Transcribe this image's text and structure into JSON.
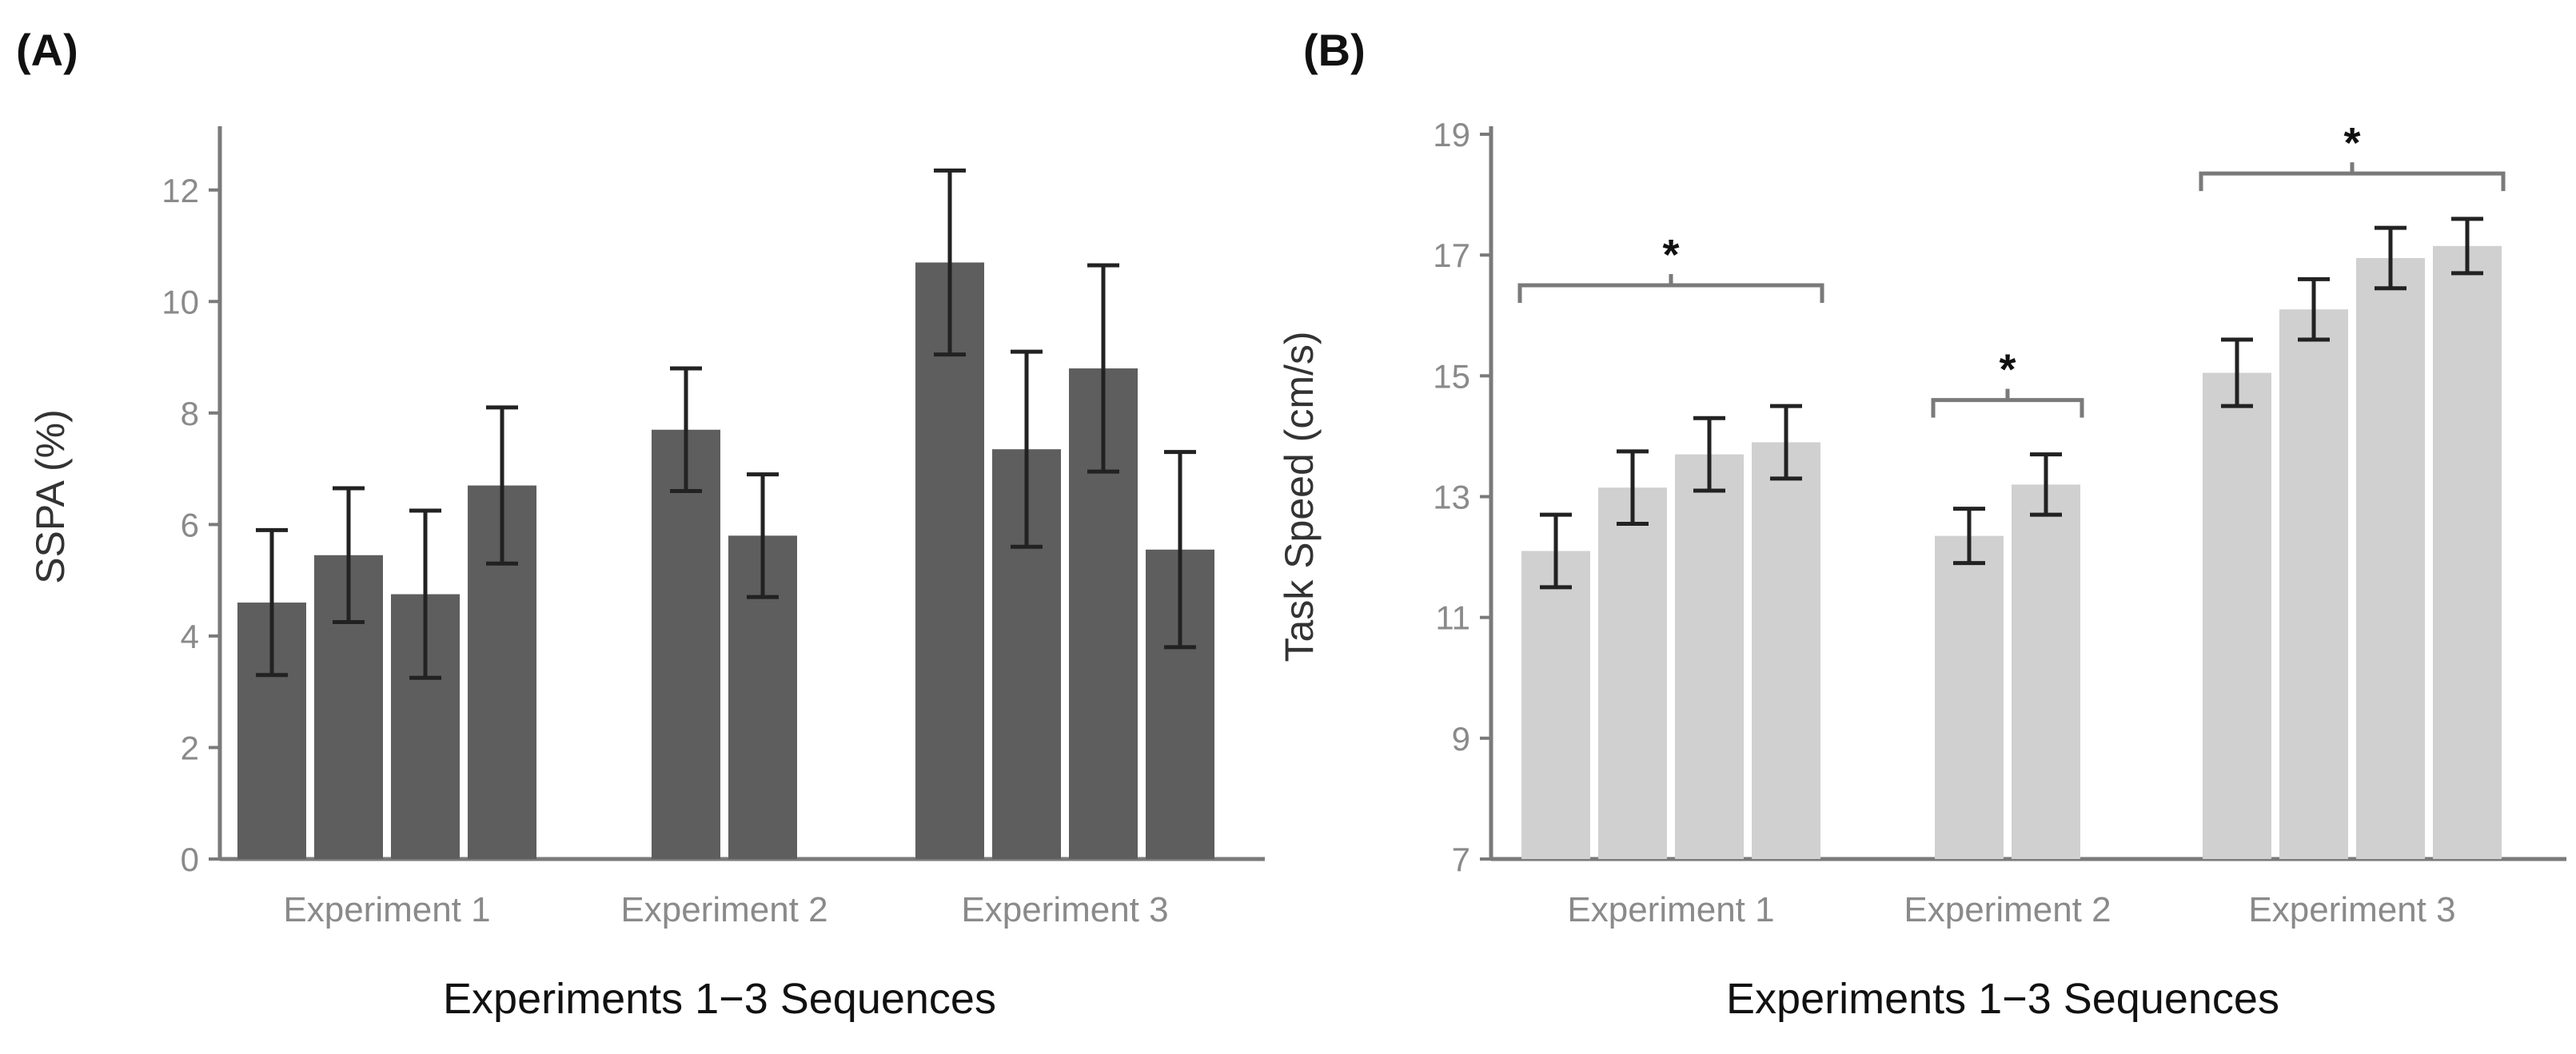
{
  "panels": [
    {
      "label": "(A)"
    },
    {
      "label": "(B)"
    }
  ],
  "colors": {
    "bar_a": "#5e5e5e",
    "bar_b": "#d0d0d0",
    "axis": "#7a7a7a",
    "tick_text": "#8a8a8a",
    "label_text": "#333333",
    "error_bar": "#222222",
    "bracket": "#7a7a7a"
  },
  "chart_data": [
    {
      "type": "bar",
      "panel": "(A)",
      "title": "",
      "xlabel": "Experiments 1−3 Sequences",
      "ylabel": "SSPA (%)",
      "ylim": [
        0,
        13
      ],
      "yticks": [
        0,
        2,
        4,
        6,
        8,
        10,
        12
      ],
      "grid": false,
      "groups": [
        {
          "name": "Experiment 1",
          "values": [
            4.6,
            5.45,
            4.75,
            6.7
          ],
          "errors": [
            1.3,
            1.2,
            1.5,
            1.4
          ]
        },
        {
          "name": "Experiment 2",
          "values": [
            7.7,
            5.8
          ],
          "errors": [
            1.1,
            1.1
          ]
        },
        {
          "name": "Experiment 3",
          "values": [
            10.7,
            7.35,
            8.8,
            5.55
          ],
          "errors": [
            1.65,
            1.75,
            1.85,
            1.75
          ]
        }
      ],
      "significance": []
    },
    {
      "type": "bar",
      "panel": "(B)",
      "title": "",
      "xlabel": "Experiments 1−3 Sequences",
      "ylabel": "Task Speed (cm/s)",
      "ylim": [
        7,
        19
      ],
      "yticks": [
        7,
        9,
        11,
        13,
        15,
        17,
        19
      ],
      "grid": false,
      "groups": [
        {
          "name": "Experiment 1",
          "values": [
            12.1,
            13.15,
            13.7,
            13.9
          ],
          "errors": [
            0.6,
            0.6,
            0.6,
            0.6
          ]
        },
        {
          "name": "Experiment 2",
          "values": [
            12.35,
            13.2
          ],
          "errors": [
            0.45,
            0.5
          ]
        },
        {
          "name": "Experiment 3",
          "values": [
            15.05,
            16.1,
            16.95,
            17.15
          ],
          "errors": [
            0.55,
            0.5,
            0.5,
            0.45
          ]
        }
      ],
      "significance": [
        {
          "group": "Experiment 1",
          "label": "*",
          "level": 16.5
        },
        {
          "group": "Experiment 2",
          "label": "*",
          "level": 14.6
        },
        {
          "group": "Experiment 3",
          "label": "*",
          "level": 18.35
        }
      ]
    }
  ]
}
